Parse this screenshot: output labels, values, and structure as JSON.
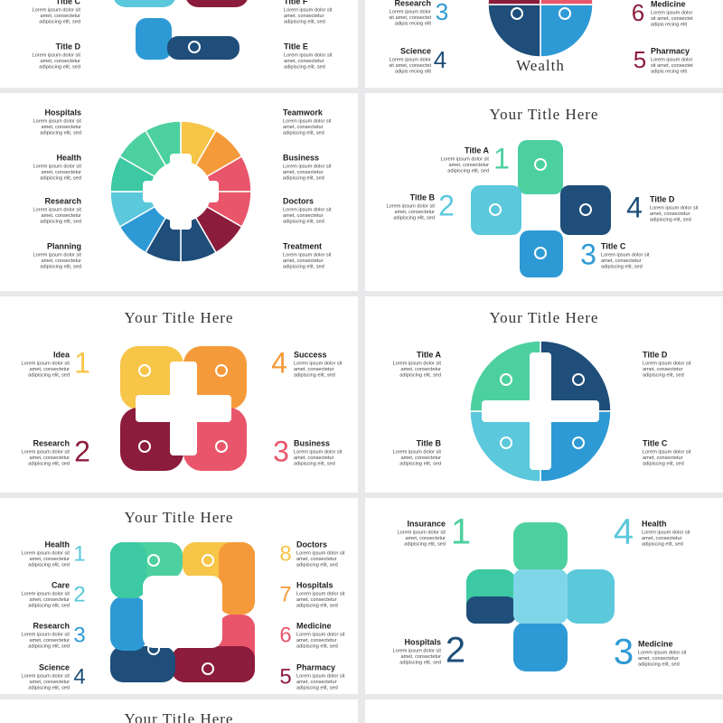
{
  "slides": [
    {
      "items": [
        {
          "label": "Title C",
          "lines": [
            "Lorem ipsum dolor sit",
            "amet, consectetur",
            "adipiscing elit, sed"
          ]
        },
        {
          "label": "Title D",
          "lines": [
            "Lorem ipsum dolor sit",
            "amet, consectetur",
            "adipiscing elit, sed"
          ]
        },
        {
          "label": "Title F",
          "lines": [
            "Lorem ipsum dolor sit",
            "amet, consectetur",
            "adipiscing elit, sed"
          ]
        },
        {
          "label": "Title E",
          "lines": [
            "Lorem ipsum dolor sit",
            "amet, consectetur",
            "adipiscing elit, sed"
          ]
        }
      ]
    },
    {
      "caption": "Wealth",
      "items": [
        {
          "label": "Research",
          "num": 3,
          "color": "#2e9ad5",
          "lines": [
            "Lorem ipsum dolor",
            "sit amet, consectet",
            "adipis recing elit"
          ]
        },
        {
          "label": "Science",
          "num": 4,
          "color": "#1e4e79",
          "lines": [
            "Lorem ipsum dolor",
            "sit amet, consectet",
            "adipis recing elit"
          ]
        },
        {
          "label": "Medicine",
          "num": 6,
          "color": "#8c1c3c",
          "lines": [
            "Lorem ipsum dolor",
            "sit amet, consectet",
            "adipis recing elit"
          ]
        },
        {
          "label": "Pharmacy",
          "num": 5,
          "color": "#8c1c3c",
          "lines": [
            "Lorem ipsum dolor",
            "sit amet, consectet",
            "adipis recing elit"
          ]
        }
      ]
    },
    {
      "items": [
        {
          "label": "Hospitals",
          "lines": [
            "Lorem ipsum dolor sit",
            "amet, consectetur",
            "adipiscing elit, sed"
          ]
        },
        {
          "label": "Health",
          "lines": [
            "Lorem ipsum dolor sit",
            "amet, consectetur",
            "adipiscing elit, sed"
          ]
        },
        {
          "label": "Research",
          "lines": [
            "Lorem ipsum dolor sit",
            "amet, consectetur",
            "adipiscing elit, sed"
          ]
        },
        {
          "label": "Planning",
          "lines": [
            "Lorem ipsum dolor sit",
            "amet, consectetur",
            "adipiscing elit, sed"
          ]
        },
        {
          "label": "Teamwork",
          "lines": [
            "Lorem ipsum dolor sit",
            "amet, consectetur",
            "adipiscing elit, sed"
          ]
        },
        {
          "label": "Business",
          "lines": [
            "Lorem ipsum dolor sit",
            "amet, consectetur",
            "adipiscing elit, sed"
          ]
        },
        {
          "label": "Doctors",
          "lines": [
            "Lorem ipsum dolor sit",
            "amet, consectetur",
            "adipiscing elit, sed"
          ]
        },
        {
          "label": "Treatment",
          "lines": [
            "Lorem ipsum dolor sit",
            "amet, consectetur",
            "adipiscing elit, sed"
          ]
        }
      ]
    },
    {
      "title": "Your Title Here",
      "items": [
        {
          "label": "Title A",
          "num": 1,
          "color": "#4dd0a0",
          "lines": [
            "Lorem ipsum dolor sit",
            "amet, consectetur",
            "adipiscing elit, sed"
          ]
        },
        {
          "label": "Title B",
          "num": 2,
          "color": "#5bc8dc",
          "lines": [
            "Lorem ipsum dolor sit",
            "amet, consectetur",
            "adipiscing elit, sed"
          ]
        },
        {
          "label": "Title D",
          "num": 4,
          "color": "#1e4e79",
          "lines": [
            "Lorem ipsum dolor sit",
            "amet, consectetur",
            "adipiscing elit, sed"
          ]
        },
        {
          "label": "Title C",
          "num": 3,
          "color": "#2e9ad5",
          "lines": [
            "Lorem ipsum dolor sit",
            "amet, consectetur",
            "adipiscing elit, sed"
          ]
        }
      ]
    },
    {
      "title": "Your Title Here",
      "items": [
        {
          "label": "Idea",
          "num": 1,
          "color": "#f7c548",
          "lines": [
            "Lorem ipsum dolor sit",
            "amet, consectetur",
            "adipiscing elit, sed"
          ]
        },
        {
          "label": "Research",
          "num": 2,
          "color": "#8c1c3c",
          "lines": [
            "Lorem ipsum dolor sit",
            "amet, consectetur",
            "adipiscing elit, sed"
          ]
        },
        {
          "label": "Success",
          "num": 4,
          "color": "#f59a3a",
          "lines": [
            "Lorem ipsum dolor sit",
            "amet, consectetur",
            "adipiscing elit, sed"
          ]
        },
        {
          "label": "Business",
          "num": 3,
          "color": "#e9566b",
          "lines": [
            "Lorem ipsum dolor sit",
            "amet, consectetur",
            "adipiscing elit, sed"
          ]
        }
      ]
    },
    {
      "title": "Your Title Here",
      "items": [
        {
          "label": "Title A",
          "lines": [
            "Lorem ipsum dolor sit",
            "amet, consectetur",
            "adipiscing elit, sed"
          ]
        },
        {
          "label": "Title B",
          "lines": [
            "Lorem ipsum dolor sit",
            "amet, consectetur",
            "adipiscing elit, sed"
          ]
        },
        {
          "label": "Title D",
          "lines": [
            "Lorem ipsum dolor sit",
            "amet, consectetur",
            "adipiscing elit, sed"
          ]
        },
        {
          "label": "Title C",
          "lines": [
            "Lorem ipsum dolor sit",
            "amet, consectetur",
            "adipiscing elit, sed"
          ]
        }
      ]
    },
    {
      "title": "Your Title Here",
      "items": [
        {
          "label": "Health",
          "num": 1,
          "color": "#5bc8dc",
          "lines": [
            "Lorem ipsum dolor sit",
            "amet, consectetur",
            "adipiscing elit, sed"
          ]
        },
        {
          "label": "Care",
          "num": 2,
          "color": "#5bc8dc",
          "lines": [
            "Lorem ipsum dolor sit",
            "amet, consectetur",
            "adipiscing elit, sed"
          ]
        },
        {
          "label": "Research",
          "num": 3,
          "color": "#2e9ad5",
          "lines": [
            "Lorem ipsum dolor sit",
            "amet, consectetur",
            "adipiscing elit, sed"
          ]
        },
        {
          "label": "Science",
          "num": 4,
          "color": "#1e4e79",
          "lines": [
            "Lorem ipsum dolor sit",
            "amet, consectetur",
            "adipiscing elit, sed"
          ]
        },
        {
          "label": "Doctors",
          "num": 8,
          "color": "#f7c548",
          "lines": [
            "Lorem ipsum dolor sit",
            "amet, consectetur",
            "adipiscing elit, sed"
          ]
        },
        {
          "label": "Hospitals",
          "num": 7,
          "color": "#f59a3a",
          "lines": [
            "Lorem ipsum dolor sit",
            "amet, consectetur",
            "adipiscing elit, sed"
          ]
        },
        {
          "label": "Medicine",
          "num": 6,
          "color": "#e9566b",
          "lines": [
            "Lorem ipsum dolor sit",
            "amet, consectetur",
            "adipiscing elit, sed"
          ]
        },
        {
          "label": "Pharmacy",
          "num": 5,
          "color": "#8c1c3c",
          "lines": [
            "Lorem ipsum dolor sit",
            "amet, consectetur",
            "adipiscing elit, sed"
          ]
        }
      ]
    },
    {
      "items": [
        {
          "label": "Insurance",
          "num": 1,
          "color": "#4dd0a0",
          "lines": [
            "Lorem ipsum dolor sit",
            "amet, consectetur",
            "adipiscing elit, sed"
          ]
        },
        {
          "label": "Hospitals",
          "num": 2,
          "color": "#1e4e79",
          "lines": [
            "Lorem ipsum dolor sit",
            "amet, consectetur",
            "adipiscing elit, sed"
          ]
        },
        {
          "label": "Health",
          "num": 4,
          "color": "#5bc8dc",
          "lines": [
            "Lorem ipsum dolor sit",
            "amet, consectetur",
            "adipiscing elit, sed"
          ]
        },
        {
          "label": "Medicine",
          "num": 3,
          "color": "#2e9ad5",
          "lines": [
            "Lorem ipsum dolor sit",
            "amet, consectetur",
            "adipiscing elit, sed"
          ]
        }
      ]
    },
    {
      "title": "Your Title Here",
      "items": []
    }
  ]
}
